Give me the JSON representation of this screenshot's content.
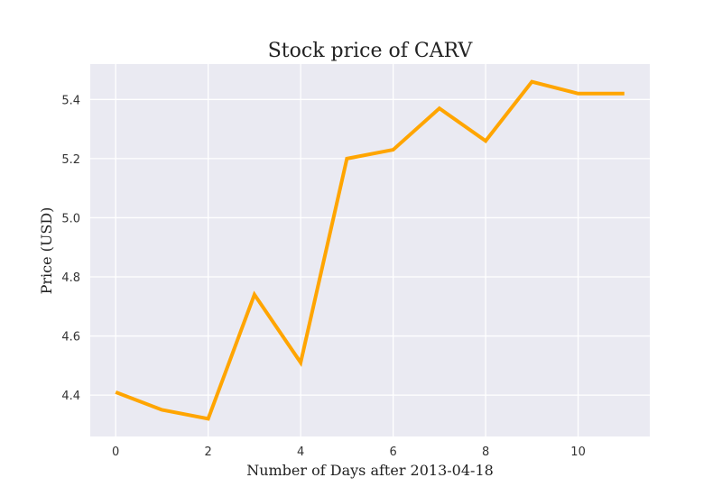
{
  "chart_data": {
    "type": "line",
    "title": "Stock price of CARV",
    "xlabel": "Number of Days after 2013-04-18",
    "ylabel": "Price (USD)",
    "x": [
      0,
      1,
      2,
      3,
      4,
      5,
      6,
      7,
      8,
      9,
      10,
      11
    ],
    "series": [
      {
        "values": [
          4.41,
          4.35,
          4.32,
          4.74,
          4.51,
          5.2,
          5.23,
          5.37,
          5.26,
          5.46,
          5.42,
          5.42
        ],
        "color": "#FFA500"
      }
    ],
    "xlim": [
      -0.55,
      11.55
    ],
    "ylim": [
      4.26,
      5.52
    ],
    "x_ticks": [
      0,
      2,
      4,
      6,
      8,
      10
    ],
    "y_ticks": [
      4.4,
      4.6,
      4.8,
      5.0,
      5.2,
      5.4
    ],
    "x_tick_labels": [
      "0",
      "2",
      "4",
      "6",
      "8",
      "10"
    ],
    "y_tick_labels": [
      "4.4",
      "4.6",
      "4.8",
      "5.0",
      "5.2",
      "5.4"
    ],
    "grid": true,
    "style": {
      "plot_background": "#EAEAF2",
      "grid_color": "#FFFFFF"
    }
  }
}
